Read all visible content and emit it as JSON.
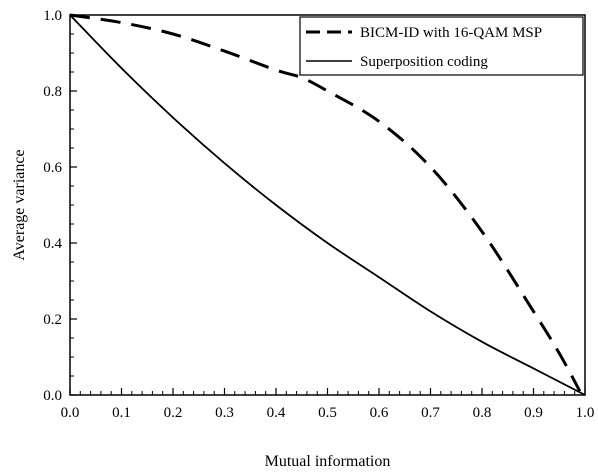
{
  "chart_data": {
    "type": "line",
    "title": "",
    "xlabel": "Mutual information",
    "ylabel": "Average variance",
    "xlim": [
      0.0,
      1.0
    ],
    "ylim": [
      0.0,
      1.0
    ],
    "x_ticks": [
      "0.0",
      "0.1",
      "0.2",
      "0.3",
      "0.4",
      "0.5",
      "0.6",
      "0.7",
      "0.8",
      "0.9",
      "1.0"
    ],
    "y_ticks": [
      "0.0",
      "0.2",
      "0.4",
      "0.6",
      "0.8",
      "1.0"
    ],
    "grid": false,
    "legend_position": "top-right",
    "series": [
      {
        "name": "BICM-ID with 16-QAM MSP",
        "style": "dashed",
        "color": "#000000",
        "x": [
          0.0,
          0.1,
          0.2,
          0.3,
          0.4,
          0.45,
          0.5,
          0.6,
          0.7,
          0.8,
          0.9,
          0.95,
          0.99
        ],
        "y": [
          1.0,
          0.98,
          0.95,
          0.905,
          0.855,
          0.835,
          0.8,
          0.72,
          0.6,
          0.43,
          0.22,
          0.11,
          0.01
        ]
      },
      {
        "name": "Superposition coding",
        "style": "solid",
        "color": "#000000",
        "x": [
          0.0,
          0.1,
          0.2,
          0.3,
          0.4,
          0.5,
          0.6,
          0.7,
          0.8,
          0.9,
          1.0
        ],
        "y": [
          1.0,
          0.86,
          0.73,
          0.61,
          0.5,
          0.4,
          0.31,
          0.22,
          0.14,
          0.07,
          0.0
        ]
      }
    ]
  }
}
